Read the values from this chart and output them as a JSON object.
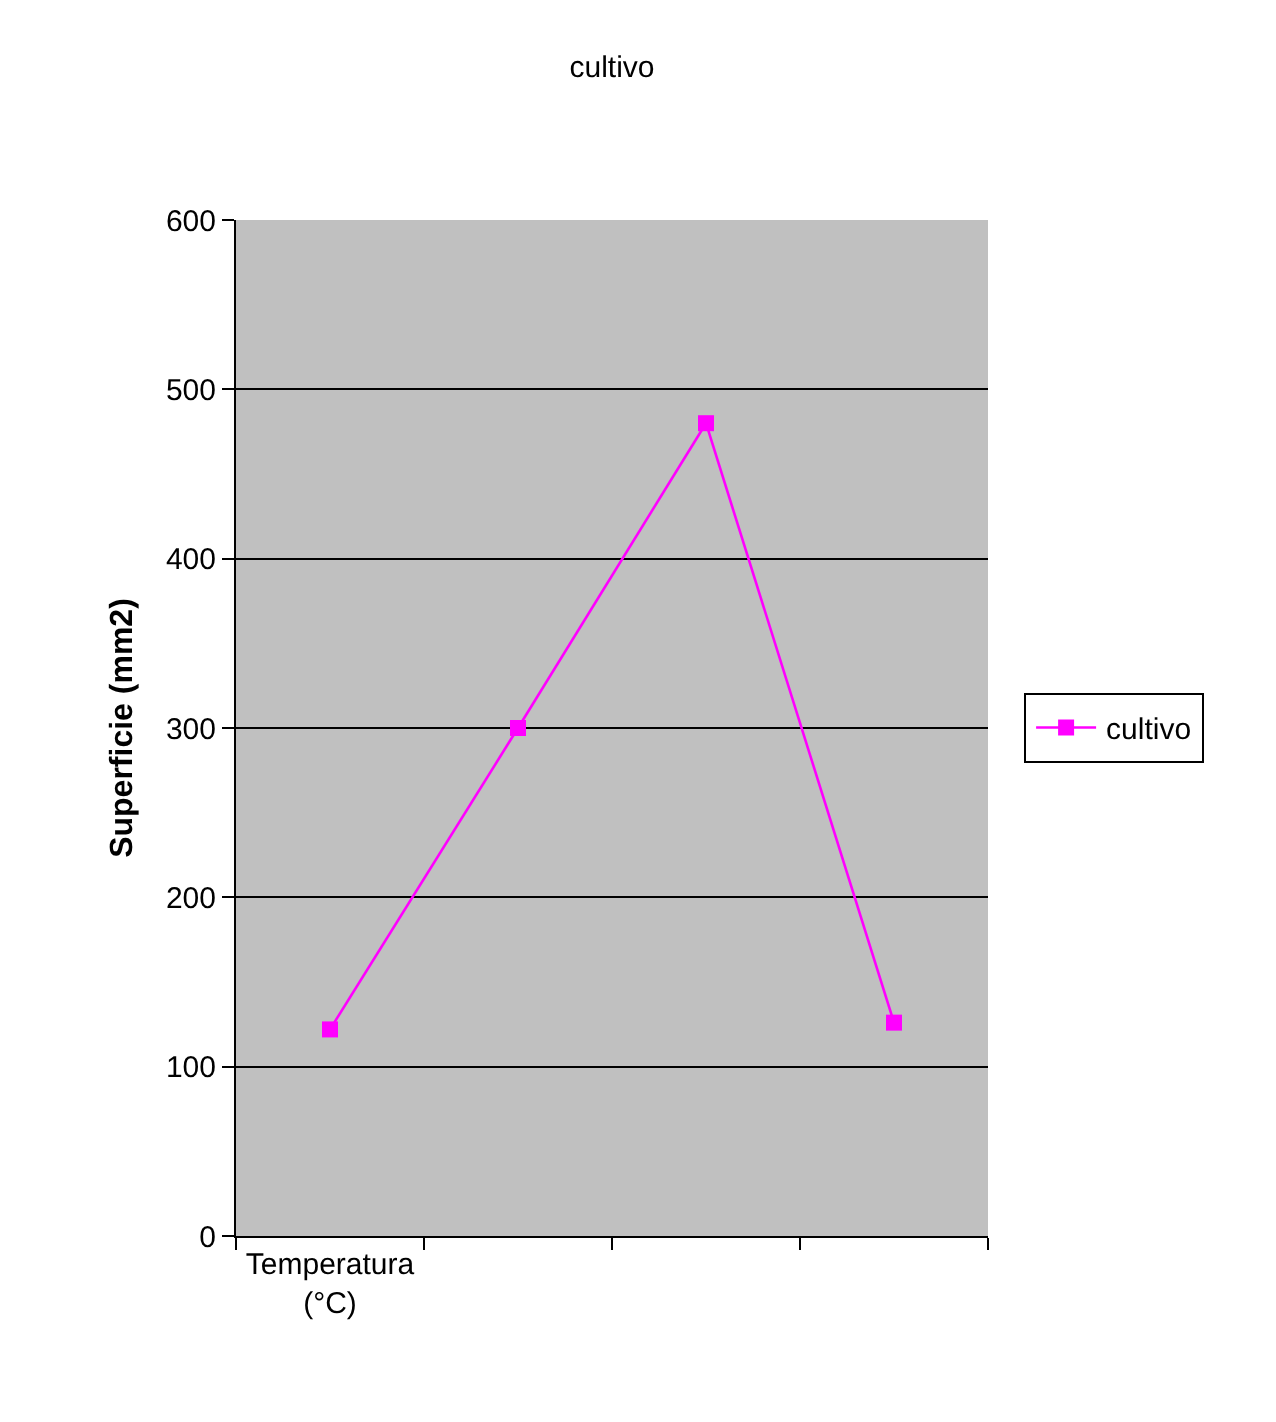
{
  "chart_data": {
    "type": "line",
    "title": "cultivo",
    "ylabel": "Superficie (mm2)",
    "categories": [
      "Temperatura (°C)",
      null,
      null,
      null
    ],
    "series": [
      {
        "name": "cultivo",
        "color": "#ff00ff",
        "values": [
          122,
          300,
          480,
          126
        ]
      }
    ],
    "ylim": [
      0,
      600
    ],
    "yticks": [
      0,
      100,
      200,
      300,
      400,
      500,
      600
    ],
    "grid": "y",
    "legend": "right",
    "marker": "square",
    "line_style": "solid"
  }
}
